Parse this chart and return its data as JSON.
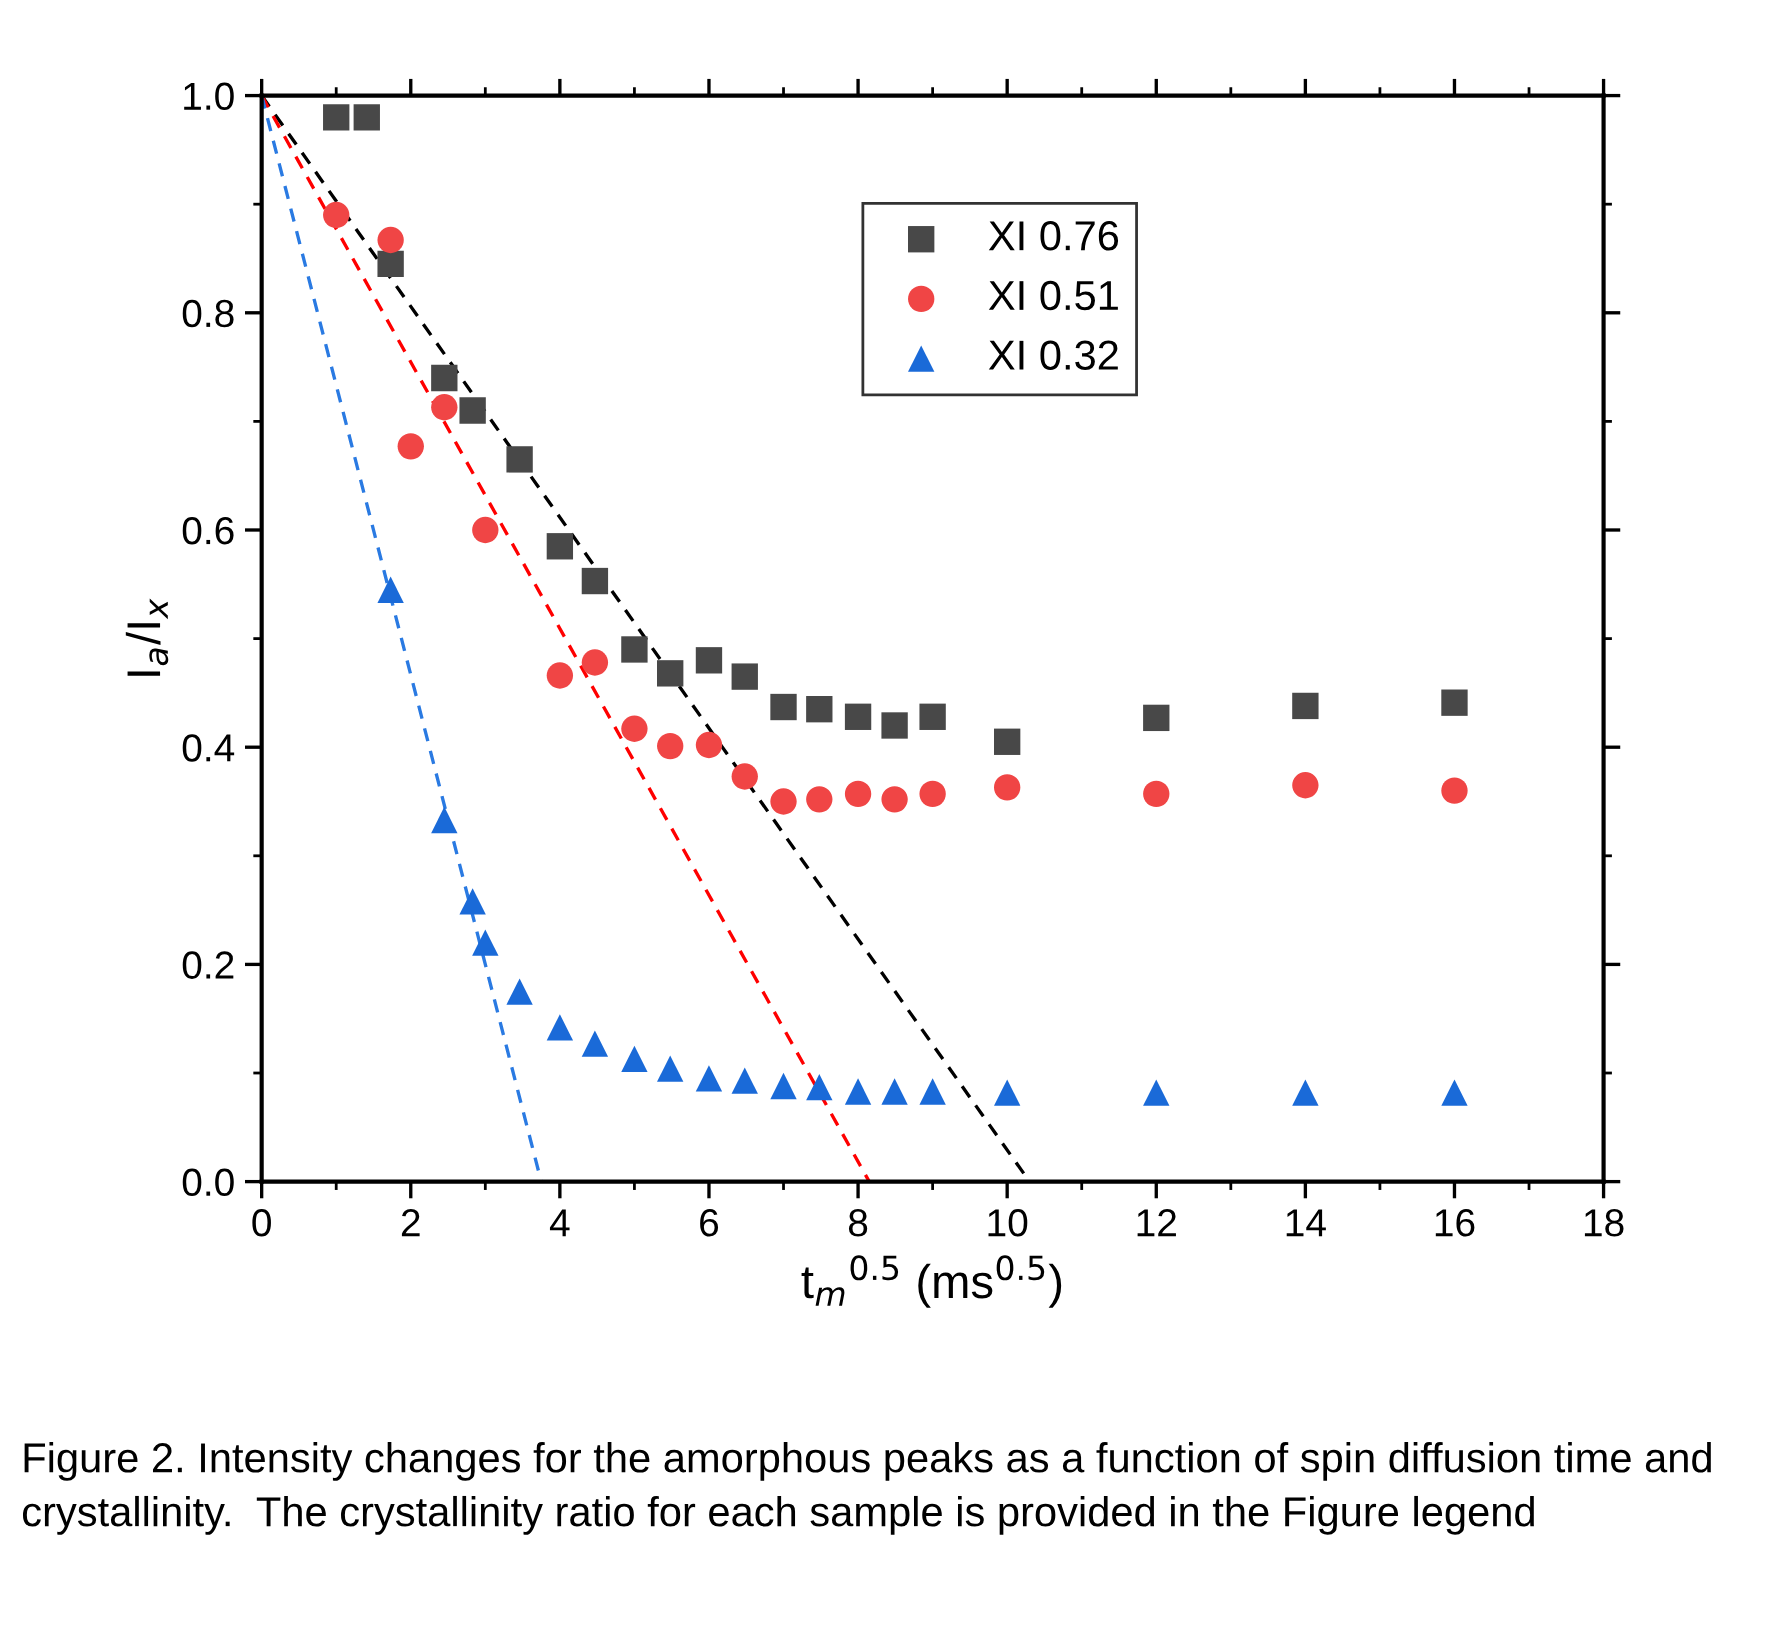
{
  "chart_data": {
    "type": "scatter",
    "xlabel": "t$_{m}$$^{0.5}$ (ms$^{0.5}$)",
    "ylabel": "I$_{a}$/I$_{x}$",
    "xlim": [
      0,
      18
    ],
    "xticks": [
      0,
      2,
      4,
      6,
      8,
      10,
      12,
      14,
      16,
      18
    ],
    "ylim": [
      0,
      1.0
    ],
    "yticks": [
      {
        "value": 0,
        "label": "0.0"
      },
      0.2,
      0.4,
      0.6,
      0.8,
      {
        "value": 1.0,
        "label": "1.0"
      }
    ],
    "grid": false,
    "legend": "top",
    "series": [
      {
        "name": "XI 0.76",
        "color": "#484848",
        "marker": "square",
        "x": [
          1,
          1.41,
          1.73,
          2.45,
          2.83,
          3.46,
          4,
          4.47,
          5,
          5.48,
          6,
          6.48,
          7,
          7.48,
          8,
          8.49,
          9,
          10,
          12,
          14,
          16
        ],
        "values": [
          0.98,
          0.98,
          0.845,
          0.74,
          0.71,
          0.665,
          0.585,
          0.553,
          0.49,
          0.468,
          0.48,
          0.465,
          0.437,
          0.435,
          0.428,
          0.42,
          0.428,
          0.405,
          0.427,
          0.438,
          0.441
        ]
      },
      {
        "name": "XI 0.51",
        "color": "#f04545",
        "marker": "circle",
        "x": [
          1,
          1.73,
          2,
          2.45,
          3,
          4,
          4.47,
          5,
          5.48,
          6,
          6.48,
          7,
          7.48,
          8,
          8.49,
          9,
          10,
          12,
          14,
          16
        ],
        "values": [
          0.89,
          0.867,
          0.677,
          0.713,
          0.6,
          0.466,
          0.478,
          0.417,
          0.401,
          0.402,
          0.373,
          0.35,
          0.352,
          0.357,
          0.352,
          0.357,
          0.363,
          0.357,
          0.365,
          0.36
        ]
      },
      {
        "name": "XI 0.32",
        "color": "#1a6ad8",
        "marker": "triangle",
        "x": [
          1.73,
          2.45,
          2.83,
          3,
          3.46,
          4,
          4.47,
          5,
          5.48,
          6,
          6.48,
          7,
          7.48,
          8,
          8.49,
          9,
          10,
          12,
          14,
          16
        ],
        "values": [
          0.545,
          0.333,
          0.258,
          0.22,
          0.175,
          0.142,
          0.127,
          0.113,
          0.104,
          0.095,
          0.093,
          0.088,
          0.087,
          0.083,
          0.083,
          0.083,
          0.082,
          0.082,
          0.082,
          0.082
        ]
      },
      {
        "type": "line",
        "line_style": "dashed",
        "color": "#000000",
        "x": [
          0,
          10.3
        ],
        "values": [
          1.0,
          0
        ]
      },
      {
        "type": "line",
        "line_style": "dashed",
        "color": "#ff0000",
        "x": [
          0,
          8.15
        ],
        "values": [
          1.0,
          0
        ]
      },
      {
        "type": "line",
        "line_style": "dashed",
        "color": "#2a7ae2",
        "x": [
          0,
          3.75
        ],
        "values": [
          1.0,
          0
        ]
      }
    ],
    "annotations": [
      "Figure 2. Intensity changes for the amorphous peaks as a function of spin diffusion time and crystallinity.  The crystallinity ratio for each sample is provided in the Figure legend"
    ]
  }
}
